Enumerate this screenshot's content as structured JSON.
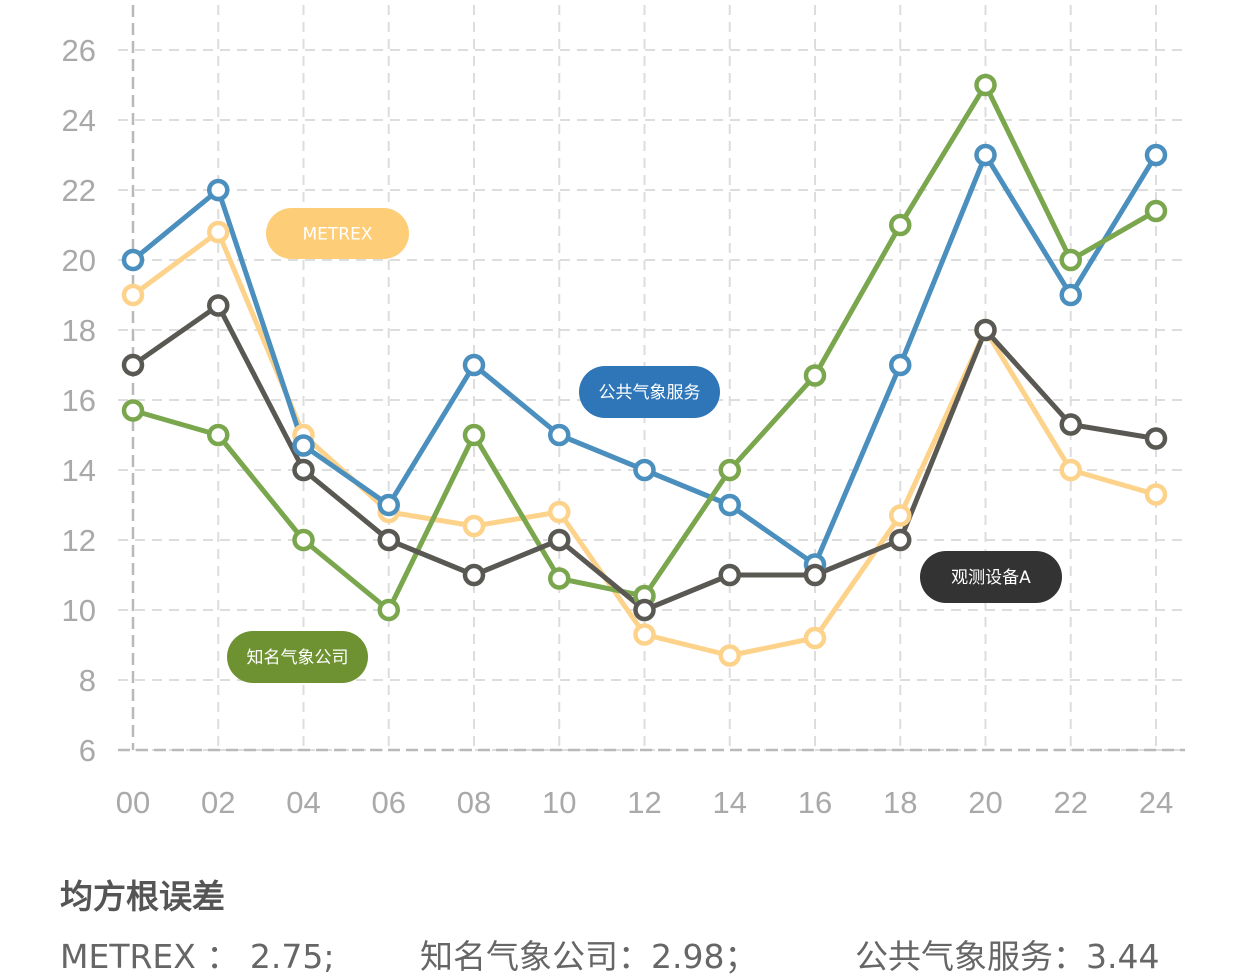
{
  "chart_data": {
    "type": "line",
    "x": [
      "00",
      "02",
      "04",
      "06",
      "08",
      "10",
      "12",
      "14",
      "16",
      "18",
      "20",
      "22",
      "24"
    ],
    "y_ticks": [
      6,
      8,
      10,
      12,
      14,
      16,
      18,
      20,
      22,
      24,
      26
    ],
    "ylim": [
      6,
      26
    ],
    "grid": true,
    "series": [
      {
        "name": "METREX",
        "color": "#fdd28a",
        "values": [
          19,
          20.8,
          15,
          12.8,
          12.4,
          12.8,
          9.3,
          8.7,
          9.2,
          12.7,
          18,
          14,
          13.3
        ]
      },
      {
        "name": "公共气象服务",
        "color": "#4a8fbd",
        "values": [
          20,
          22,
          14.7,
          13,
          17,
          15,
          14,
          13,
          11.3,
          17,
          23,
          19,
          23
        ]
      },
      {
        "name": "知名气象公司",
        "color": "#7aa64e",
        "values": [
          15.7,
          15,
          12,
          10,
          15,
          10.9,
          10.4,
          14,
          16.7,
          21,
          25,
          20,
          21.4
        ]
      },
      {
        "name": "观测设备A",
        "color": "#5a5853",
        "values": [
          17,
          18.7,
          14,
          12,
          11,
          12,
          10,
          11,
          11,
          12,
          18,
          15.3,
          14.9
        ]
      }
    ],
    "labels": [
      {
        "text": "METREX",
        "bg": "#fdcd78"
      },
      {
        "text": "公共气象服务",
        "bg": "#2f76b8"
      },
      {
        "text": "观测设备A",
        "bg": "#333333"
      },
      {
        "text": "知名气象公司",
        "bg": "#6e9231"
      }
    ]
  },
  "rmse": {
    "title": "均方根误差",
    "items": [
      "METREX ： 2.75;",
      "知名气象公司：2.98；",
      "公共气象服务：3.44"
    ]
  }
}
